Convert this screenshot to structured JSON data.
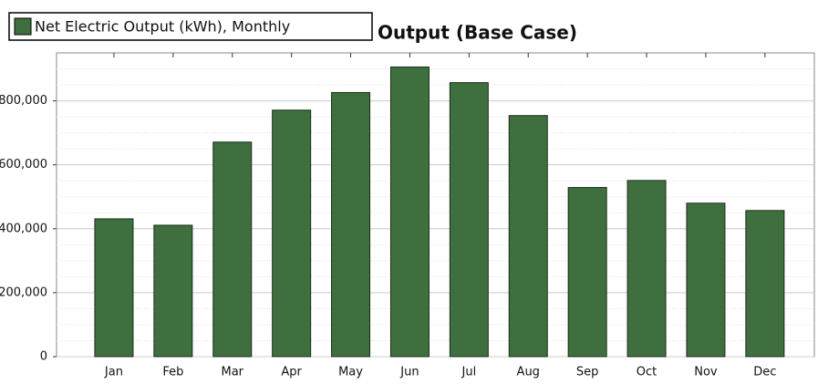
{
  "chart_data": {
    "type": "bar",
    "title": "Output (Base Case)",
    "legend": "Net Electric Output (kWh), Monthly",
    "categories": [
      "Jan",
      "Feb",
      "Mar",
      "Apr",
      "May",
      "Jun",
      "Jul",
      "Aug",
      "Sep",
      "Oct",
      "Nov",
      "Dec"
    ],
    "values": [
      431000,
      411000,
      671000,
      771000,
      826000,
      906000,
      857000,
      754000,
      529000,
      551000,
      480000,
      457000
    ],
    "color": "#3f6e3f",
    "ylim": [
      0,
      950000
    ],
    "yticks": [
      0,
      {
        "value": 200000,
        "label": "200,000"
      },
      {
        "value": 400000,
        "label": "400,000"
      },
      {
        "value": 600000,
        "label": "600,000"
      },
      {
        "value": 800000,
        "label": "800,000"
      }
    ],
    "grid": true
  }
}
